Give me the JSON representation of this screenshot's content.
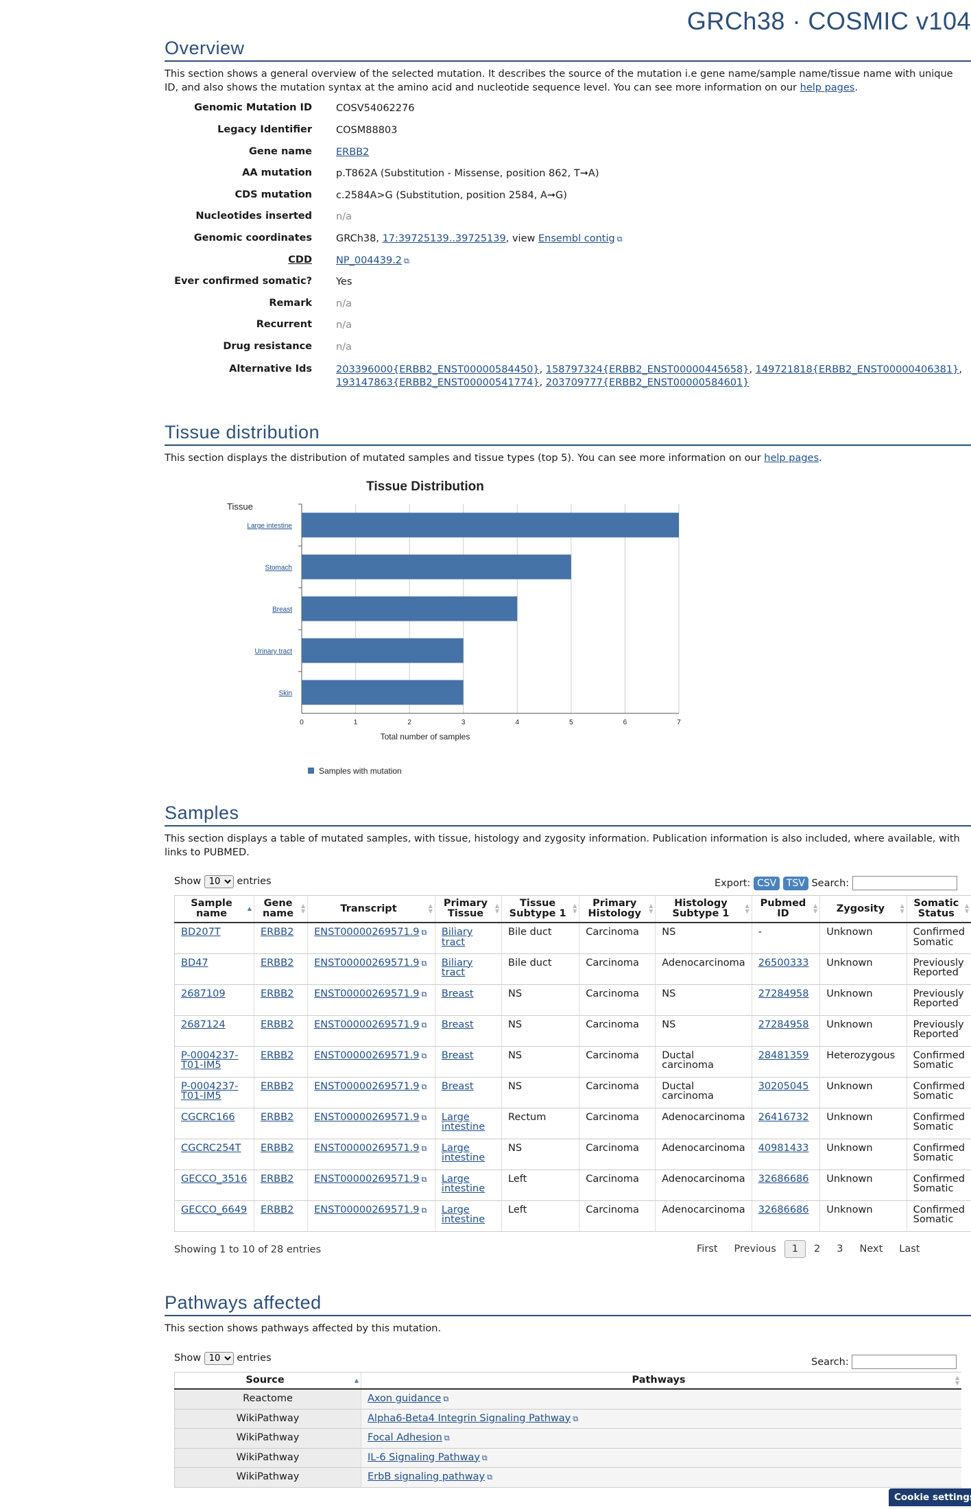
{
  "header": {
    "title": "GRCh38 · COSMIC v104"
  },
  "overview": {
    "heading": "Overview",
    "intro": "This section shows a general overview of the selected mutation. It describes the source of the mutation i.e gene name/sample name/tissue name with unique ID, and also shows the mutation syntax at the amino acid and nucleotide sequence level. You can see more information on our",
    "help_link": "help pages",
    "labels": {
      "genomic_mutation_id": "Genomic Mutation ID",
      "legacy_identifier": "Legacy Identifier",
      "gene_name": "Gene name",
      "aa_mutation": "AA mutation",
      "cds_mutation": "CDS mutation",
      "nucleotides_inserted": "Nucleotides inserted",
      "genomic_coordinates": "Genomic coordinates",
      "cdd": "CDD",
      "ever_confirmed_somatic": "Ever confirmed somatic?",
      "remark": "Remark",
      "recurrent": "Recurrent",
      "drug_resistance": "Drug resistance",
      "alternative_ids": "Alternative Ids"
    },
    "values": {
      "genomic_mutation_id": "COSV54062276",
      "legacy_identifier": "COSM88803",
      "gene_name": "ERBB2",
      "aa_mutation": "p.T862A (Substitution - Missense, position 862, T➞A)",
      "cds_mutation": "c.2584A>G (Substitution, position 2584, A➞G)",
      "nucleotides_inserted": "n/a",
      "coords_prefix": "GRCh38,",
      "coords_link": "17:39725139..39725139",
      "coords_view": ", view",
      "coords_contig": "Ensembl contig",
      "cdd": "NP_004439.2",
      "ever_confirmed_somatic": "Yes",
      "remark": "n/a",
      "recurrent": "n/a",
      "drug_resistance": "n/a",
      "alt_ids": [
        "203396000{ERBB2_ENST00000584450}",
        "158797324{ERBB2_ENST00000445658}",
        "149721818{ERBB2_ENST00000406381}",
        "193147863{ERBB2_ENST00000541774}",
        "203709777{ERBB2_ENST00000584601}"
      ]
    }
  },
  "tissue": {
    "heading": "Tissue distribution",
    "intro": "This section displays the distribution of mutated samples and tissue types (top 5). You can see more information on our",
    "help_link": "help pages"
  },
  "chart_data": {
    "type": "bar",
    "orientation": "horizontal",
    "title": "Tissue Distribution",
    "ylabel": "Tissue",
    "xlabel": "Total number of samples",
    "categories": [
      "Large intestine",
      "Stomach",
      "Breast",
      "Urinary tract",
      "Skin"
    ],
    "series": [
      {
        "name": "Samples with mutation",
        "values": [
          7,
          5,
          4,
          3,
          3
        ]
      }
    ],
    "xlim": [
      0,
      7
    ],
    "xticks": [
      "0",
      "1",
      "2",
      "3",
      "4",
      "5",
      "6",
      "7"
    ],
    "grid": true,
    "legend_position": "bottom-left",
    "color": "#4572a7"
  },
  "samples": {
    "heading": "Samples",
    "intro": "This section displays a table of mutated samples, with tissue, histology and zygosity information. Publication information is also included, where available, with links to PUBMED.",
    "show_label": "Show",
    "entries_label": "entries",
    "page_size": "10",
    "export_label": "Export:",
    "csv": "CSV",
    "tsv": "TSV",
    "search_label": "Search:",
    "columns": [
      "Sample name",
      "Gene name",
      "Transcript",
      "Primary Tissue",
      "Tissue Subtype 1",
      "Primary Histology",
      "Histology Subtype 1",
      "Pubmed ID",
      "Zygosity",
      "Somatic Status"
    ],
    "rows": [
      [
        "BD207T",
        "ERBB2",
        "ENST00000269571.9",
        "Biliary tract",
        "Bile duct",
        "Carcinoma",
        "NS",
        "-",
        "Unknown",
        "Confirmed Somatic"
      ],
      [
        "BD47",
        "ERBB2",
        "ENST00000269571.9",
        "Biliary tract",
        "Bile duct",
        "Carcinoma",
        "Adenocarcinoma",
        "26500333",
        "Unknown",
        "Previously Reported"
      ],
      [
        "2687109",
        "ERBB2",
        "ENST00000269571.9",
        "Breast",
        "NS",
        "Carcinoma",
        "NS",
        "27284958",
        "Unknown",
        "Previously Reported"
      ],
      [
        "2687124",
        "ERBB2",
        "ENST00000269571.9",
        "Breast",
        "NS",
        "Carcinoma",
        "NS",
        "27284958",
        "Unknown",
        "Previously Reported"
      ],
      [
        "P-0004237-T01-IM5",
        "ERBB2",
        "ENST00000269571.9",
        "Breast",
        "NS",
        "Carcinoma",
        "Ductal carcinoma",
        "28481359",
        "Heterozygous",
        "Confirmed Somatic"
      ],
      [
        "P-0004237-T01-IM5",
        "ERBB2",
        "ENST00000269571.9",
        "Breast",
        "NS",
        "Carcinoma",
        "Ductal carcinoma",
        "30205045",
        "Unknown",
        "Confirmed Somatic"
      ],
      [
        "CGCRC166",
        "ERBB2",
        "ENST00000269571.9",
        "Large intestine",
        "Rectum",
        "Carcinoma",
        "Adenocarcinoma",
        "26416732",
        "Unknown",
        "Confirmed Somatic"
      ],
      [
        "CGCRC254T",
        "ERBB2",
        "ENST00000269571.9",
        "Large intestine",
        "NS",
        "Carcinoma",
        "Adenocarcinoma",
        "40981433",
        "Unknown",
        "Confirmed Somatic"
      ],
      [
        "GECCO_3516",
        "ERBB2",
        "ENST00000269571.9",
        "Large intestine",
        "Left",
        "Carcinoma",
        "Adenocarcinoma",
        "32686686",
        "Unknown",
        "Confirmed Somatic"
      ],
      [
        "GECCO_6649",
        "ERBB2",
        "ENST00000269571.9",
        "Large intestine",
        "Left",
        "Carcinoma",
        "Adenocarcinoma",
        "32686686",
        "Unknown",
        "Confirmed Somatic"
      ]
    ],
    "info": "Showing 1 to 10 of 28 entries",
    "pager": {
      "first": "First",
      "previous": "Previous",
      "p1": "1",
      "p2": "2",
      "p3": "3",
      "next": "Next",
      "last": "Last"
    }
  },
  "pathways": {
    "heading": "Pathways affected",
    "intro": "This section shows pathways affected by this mutation.",
    "show_label": "Show",
    "entries_label": "entries",
    "page_size": "10",
    "search_label": "Search:",
    "columns": [
      "Source",
      "Pathways"
    ],
    "rows": [
      [
        "Reactome",
        "Axon guidance"
      ],
      [
        "WikiPathway",
        "Alpha6-Beta4 Integrin Signaling Pathway"
      ],
      [
        "WikiPathway",
        "Focal Adhesion"
      ],
      [
        "WikiPathway",
        "IL-6 Signaling Pathway"
      ],
      [
        "WikiPathway",
        "ErbB signaling pathway"
      ]
    ]
  },
  "cookie": {
    "label": "Cookie settings"
  }
}
